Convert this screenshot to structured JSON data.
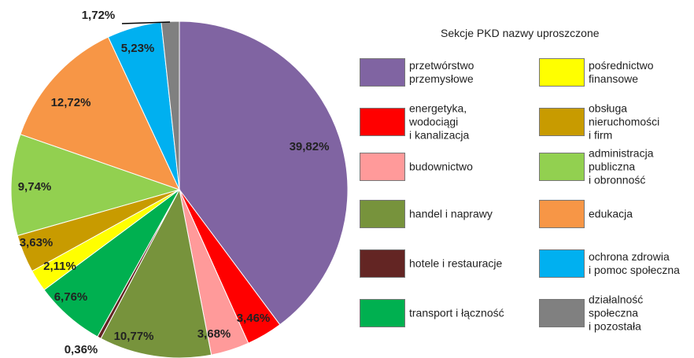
{
  "chart_data": {
    "type": "pie",
    "legend_title": "Sekcje PKD nazwy uproszczone",
    "categories": [
      "przetwórstwo\nprzemysłowe",
      "energetyka,\nwodociągi\ni kanalizacja",
      "budownictwo",
      "handel i naprawy",
      "hotele i restauracje",
      "transport i łączność",
      "pośrednictwo\nfinansowe",
      "obsługa\nnieruchomości\ni firm",
      "administracja\npubliczna\ni obronność",
      "edukacja",
      "ochrona zdrowia\ni pomoc społeczna",
      "działalność\nspołeczna\ni pozostała"
    ],
    "values": [
      39.82,
      3.46,
      3.68,
      10.77,
      0.36,
      6.76,
      2.11,
      3.63,
      9.74,
      12.72,
      5.23,
      1.72
    ],
    "value_labels": [
      "39,82%",
      "3,46%",
      "3,68%",
      "10,77%",
      "0,36%",
      "6,76%",
      "2,11%",
      "3,63%",
      "9,74%",
      "12,72%",
      "5,23%",
      "1,72%"
    ],
    "colors": [
      "#8064a2",
      "#ff0000",
      "#ff9a9a",
      "#77933c",
      "#632523",
      "#00b050",
      "#ffff00",
      "#c89b00",
      "#92d050",
      "#f79646",
      "#00b0f0",
      "#808080"
    ]
  }
}
